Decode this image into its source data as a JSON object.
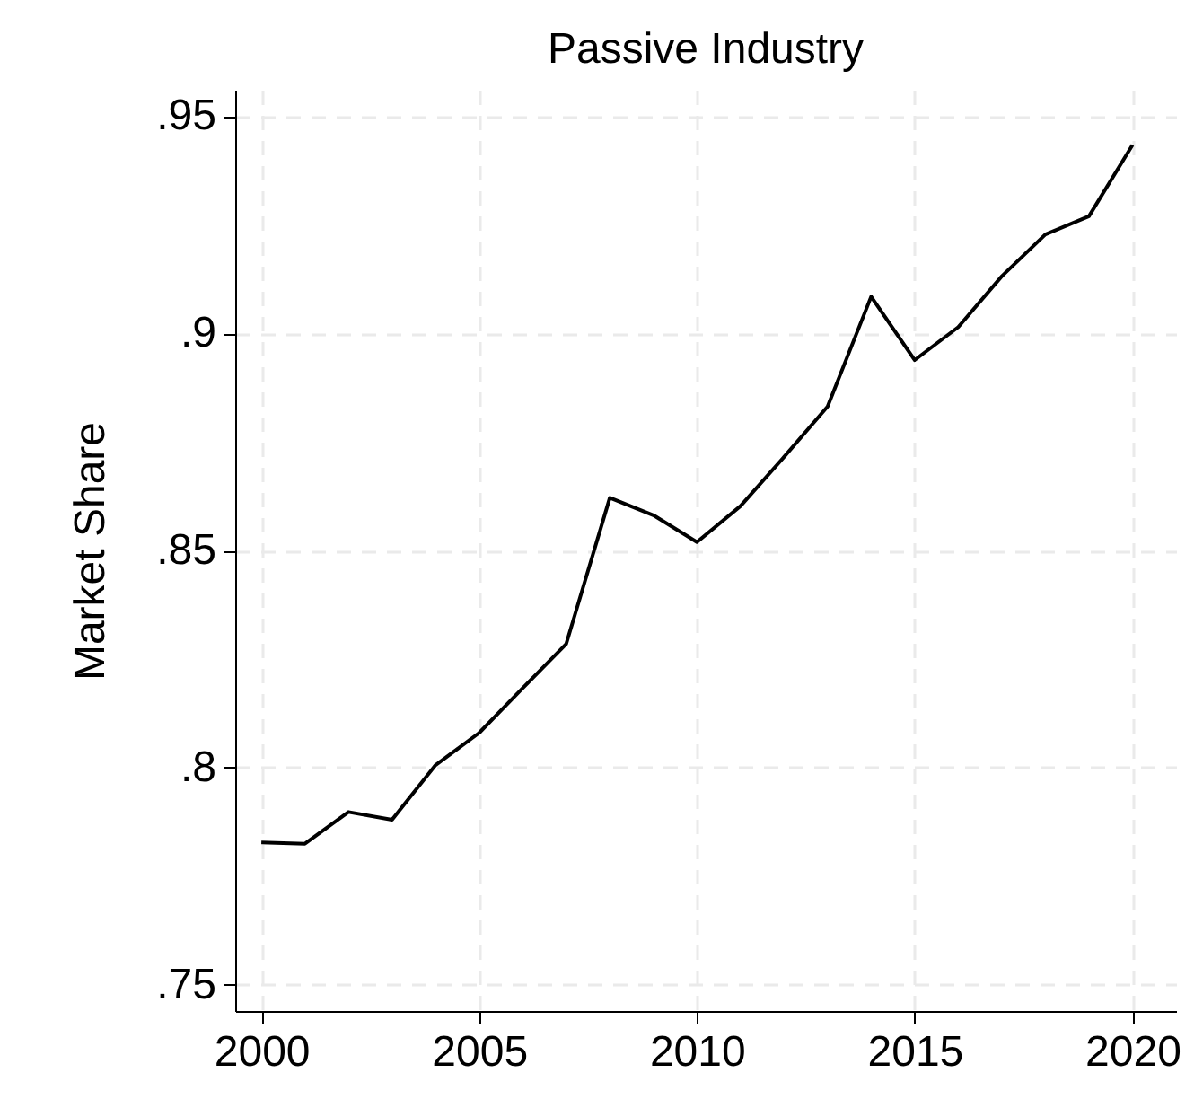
{
  "chart_data": {
    "type": "line",
    "title": "Passive Industry",
    "ylabel": "Market Share",
    "x": [
      2000,
      2001,
      2002,
      2003,
      2004,
      2005,
      2006,
      2007,
      2008,
      2009,
      2010,
      2011,
      2012,
      2013,
      2014,
      2015,
      2016,
      2017,
      2018,
      2019,
      2020
    ],
    "series": [
      {
        "color": "#000000",
        "values": [
          0.7828,
          0.7825,
          0.7898,
          0.788,
          0.8006,
          0.808,
          0.8183,
          0.8285,
          0.8621,
          0.8581,
          0.8519,
          0.8602,
          0.8715,
          0.8831,
          0.9084,
          0.8938,
          0.9014,
          0.9131,
          0.9227,
          0.9269,
          0.9433
        ]
      }
    ],
    "xlim": [
      1999.4,
      2021
    ],
    "xticks": [
      2000,
      2005,
      2010,
      2015,
      2020
    ],
    "ylim": [
      0.744,
      0.956
    ],
    "yticks": [
      {
        "value": 0.75,
        "label": ".75"
      },
      {
        "value": 0.8,
        "label": ".8"
      },
      {
        "value": 0.85,
        "label": ".85"
      },
      {
        "value": 0.9,
        "label": ".9"
      },
      {
        "value": 0.95,
        "label": ".95"
      }
    ],
    "grid": true
  }
}
